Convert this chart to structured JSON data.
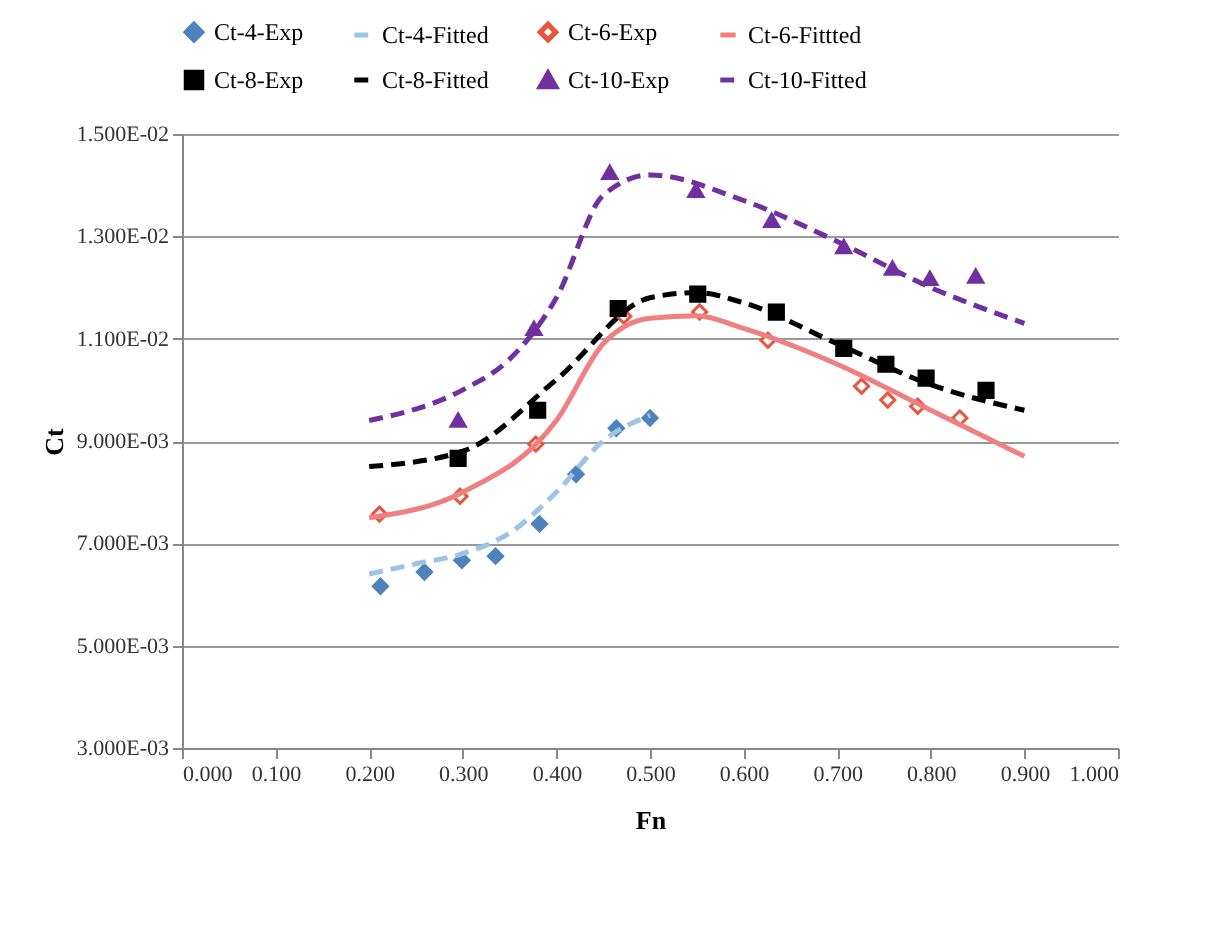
{
  "chart_data": {
    "type": "scatter",
    "xlabel": "Fn",
    "ylabel": "Ct",
    "legend": "top",
    "grid": "y",
    "xlim": [
      0,
      1
    ],
    "xticks": [
      {
        "value": 0,
        "label": "0.000"
      },
      {
        "value": 0.1,
        "label": "0.100"
      },
      {
        "value": 0.2,
        "label": "0.200"
      },
      {
        "value": 0.3,
        "label": "0.300"
      },
      {
        "value": 0.4,
        "label": "0.400"
      },
      {
        "value": 0.5,
        "label": "0.500"
      },
      {
        "value": 0.6,
        "label": "0.600"
      },
      {
        "value": 0.7,
        "label": "0.700"
      },
      {
        "value": 0.8,
        "label": "0.800"
      },
      {
        "value": 0.9,
        "label": "0.900"
      },
      {
        "value": 1,
        "label": "1.000"
      }
    ],
    "ylim": [
      0.003,
      0.015
    ],
    "yticks": [
      {
        "value": 0.003,
        "label": "3.000E-03"
      },
      {
        "value": 0.005,
        "label": "5.000E-03"
      },
      {
        "value": 0.007,
        "label": "7.000E-03"
      },
      {
        "value": 0.009,
        "label": "9.000E-03"
      },
      {
        "value": 0.011,
        "label": "1.100E-02"
      },
      {
        "value": 0.013,
        "label": "1.300E-02"
      },
      {
        "value": 0.015,
        "label": "1.500E-02"
      }
    ],
    "series": [
      {
        "name": "Ct-4-Exp",
        "marker": "diamond",
        "color": "#4f81bd",
        "x": [
          0.212,
          0.259,
          0.299,
          0.335,
          0.382,
          0.421,
          0.464,
          0.5
        ],
        "values": [
          0.00616,
          0.00644,
          0.00667,
          0.00675,
          0.00738,
          0.00835,
          0.00925,
          0.00945
        ]
      },
      {
        "name": "Ct-4-Fitted",
        "type": "line",
        "line_style": "dashed",
        "color": "#9dc3e6",
        "x": [
          0.2,
          0.25,
          0.3,
          0.35,
          0.4,
          0.45,
          0.5
        ],
        "values": [
          0.0064,
          0.0066,
          0.0068,
          0.0072,
          0.008,
          0.009,
          0.0095
        ]
      },
      {
        "name": "Ct-6-Exp",
        "marker": "diamond-open",
        "color": "#e8553f",
        "x": [
          0.211,
          0.297,
          0.378,
          0.472,
          0.553,
          0.626,
          0.726,
          0.754,
          0.786,
          0.831
        ],
        "values": [
          0.00757,
          0.00792,
          0.00894,
          0.01144,
          0.01152,
          0.01097,
          0.01007,
          0.0098,
          0.00968,
          0.00945
        ]
      },
      {
        "name": "Ct-6-Fittted",
        "type": "line",
        "line_style": "solid",
        "color": "#f08080",
        "x": [
          0.2,
          0.3,
          0.4,
          0.45,
          0.5,
          0.55,
          0.6,
          0.7,
          0.8,
          0.9
        ],
        "values": [
          0.0075,
          0.008,
          0.0094,
          0.0109,
          0.0114,
          0.01145,
          0.0112,
          0.0105,
          0.0096,
          0.0087
        ]
      },
      {
        "name": "Ct-8-Exp",
        "marker": "square",
        "color": "#000000",
        "x": [
          0.295,
          0.38,
          0.466,
          0.551,
          0.635,
          0.707,
          0.752,
          0.795,
          0.859
        ],
        "values": [
          0.00866,
          0.0096,
          0.01159,
          0.01187,
          0.01152,
          0.01081,
          0.0105,
          0.01023,
          0.00999
        ]
      },
      {
        "name": "Ct-8-Fitted",
        "type": "line",
        "line_style": "dashed",
        "color": "#000000",
        "x": [
          0.2,
          0.3,
          0.4,
          0.5,
          0.55,
          0.6,
          0.7,
          0.8,
          0.9
        ],
        "values": [
          0.0085,
          0.0088,
          0.0102,
          0.0118,
          0.0119,
          0.0117,
          0.0109,
          0.0101,
          0.0096
        ]
      },
      {
        "name": "Ct-10-Exp",
        "marker": "triangle",
        "color": "#7030a0",
        "x": [
          0.295,
          0.376,
          0.457,
          0.549,
          0.63,
          0.707,
          0.759,
          0.799,
          0.848
        ],
        "values": [
          0.00941,
          0.0112,
          0.01425,
          0.0139,
          0.01331,
          0.0128,
          0.01238,
          0.01218,
          0.01222
        ]
      },
      {
        "name": "Ct-10-Fitted",
        "type": "line",
        "line_style": "dashed",
        "color": "#7030a0",
        "x": [
          0.2,
          0.3,
          0.35,
          0.4,
          0.45,
          0.5,
          0.6,
          0.7,
          0.8,
          0.9
        ],
        "values": [
          0.0094,
          0.01,
          0.0106,
          0.0118,
          0.0138,
          0.0142,
          0.0137,
          0.0129,
          0.012,
          0.0113
        ]
      }
    ]
  }
}
